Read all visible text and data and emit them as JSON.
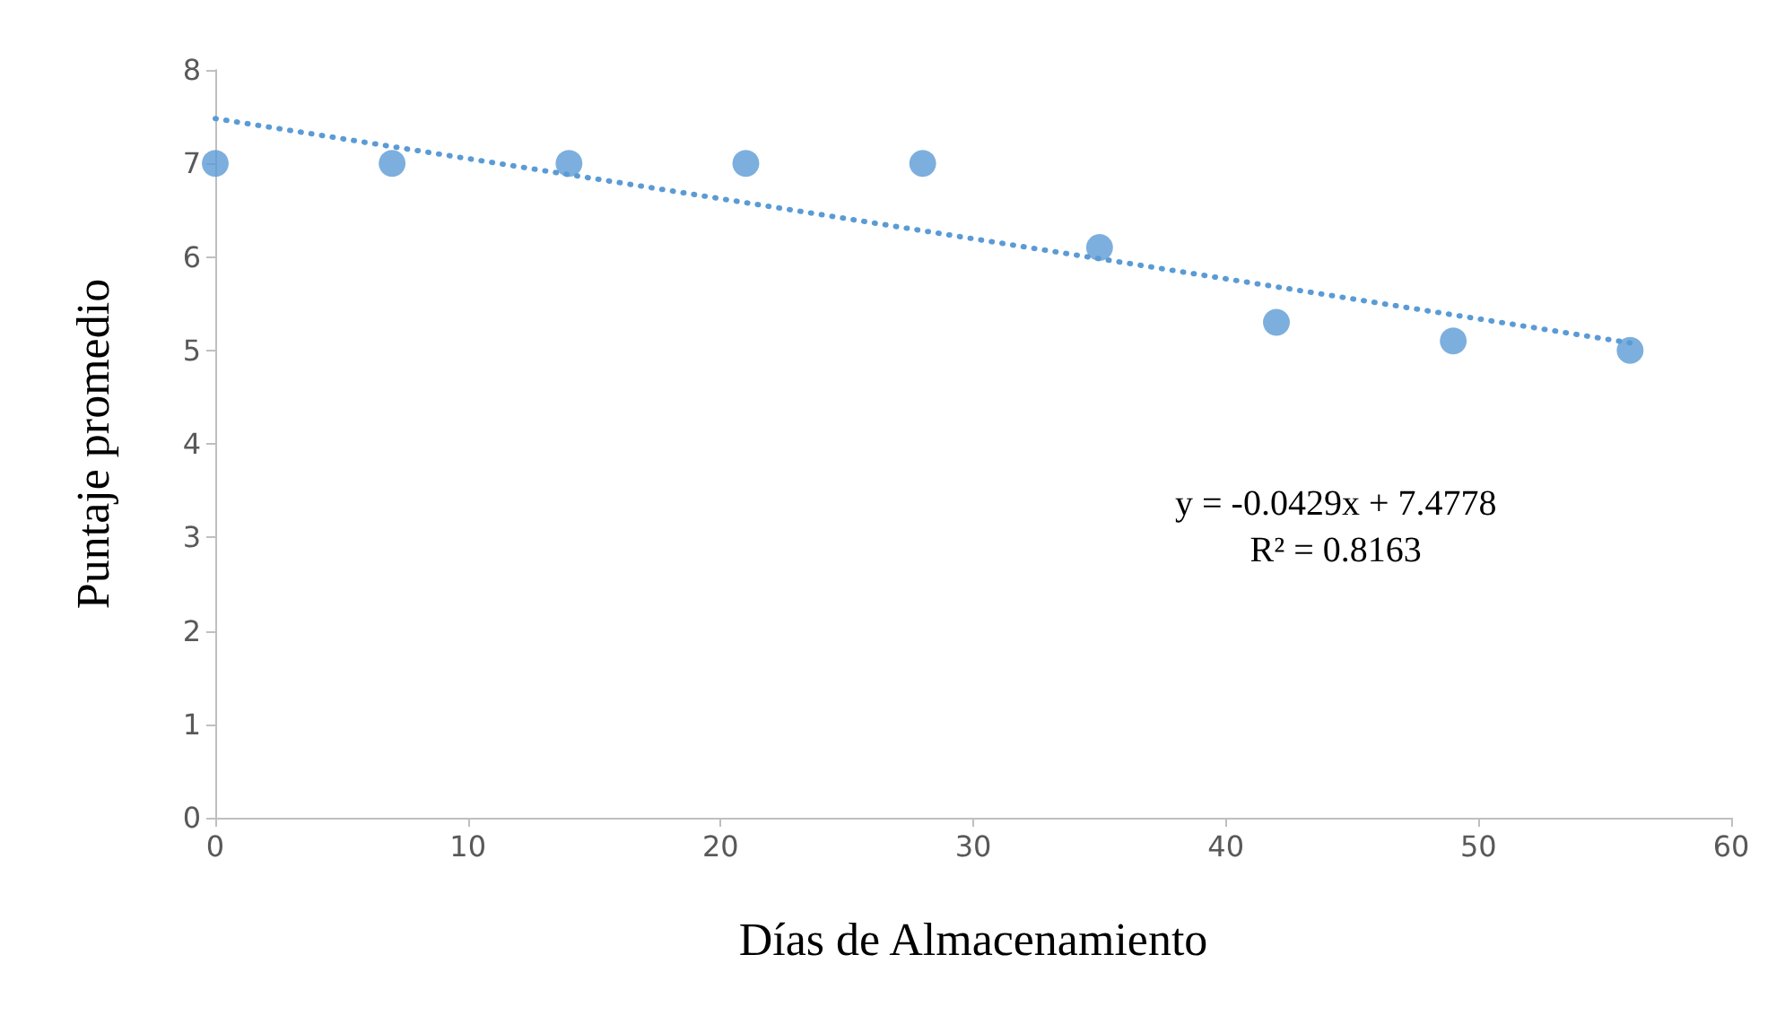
{
  "chart_data": {
    "type": "scatter",
    "xlabel": "Días de Almacenamiento",
    "ylabel": "Puntaje promedio",
    "xlim": [
      0,
      60
    ],
    "xticks": [
      0,
      10,
      20,
      30,
      40,
      50,
      60
    ],
    "ylim": [
      0,
      8
    ],
    "yticks": [
      0,
      1,
      2,
      3,
      4,
      5,
      6,
      7,
      8
    ],
    "grid": false,
    "marker": "circle",
    "series": [
      {
        "color": "#5b9bd5",
        "x": [
          0,
          7,
          14,
          21,
          28,
          35,
          42,
          49,
          56
        ],
        "values": [
          7,
          7,
          7,
          7,
          7,
          6.1,
          5.3,
          5.1,
          5
        ]
      },
      {
        "type": "line",
        "color": "#5b9bd5",
        "line_style": "dotted",
        "marker": "none",
        "x": [
          0,
          56
        ],
        "values": [
          7.48,
          5.08
        ]
      }
    ],
    "annotations": [
      "y = -0.0429x + 7.4778\nR² = 0.8163"
    ]
  }
}
